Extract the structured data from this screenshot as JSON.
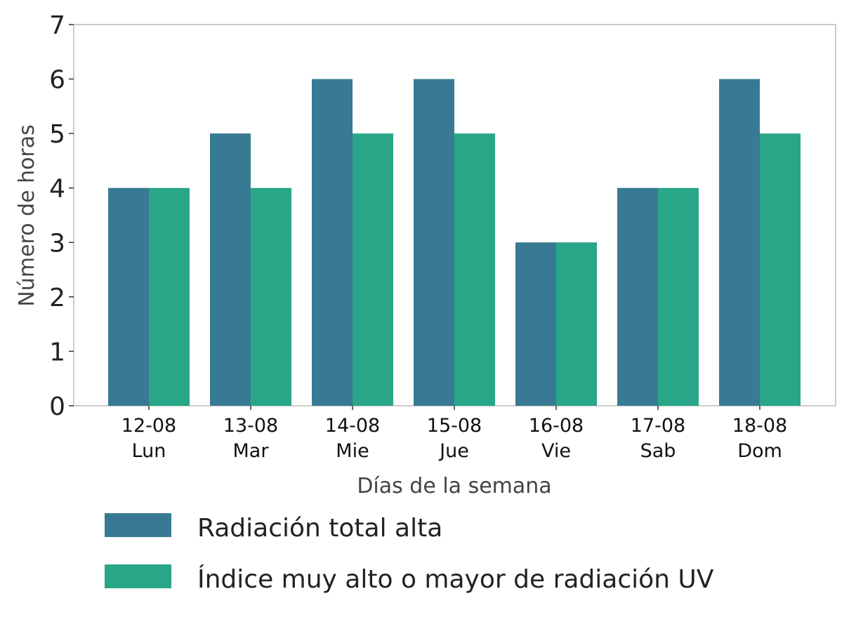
{
  "chart_data": {
    "type": "bar",
    "categories": [
      [
        "12-08",
        "Lun"
      ],
      [
        "13-08",
        "Mar"
      ],
      [
        "14-08",
        "Mie"
      ],
      [
        "15-08",
        "Jue"
      ],
      [
        "16-08",
        "Vie"
      ],
      [
        "17-08",
        "Sab"
      ],
      [
        "18-08",
        "Dom"
      ]
    ],
    "series": [
      {
        "name": "Radiación total alta",
        "values": [
          4,
          5,
          6,
          6,
          3,
          4,
          6
        ],
        "color": "#387a93"
      },
      {
        "name": "Índice muy alto o mayor de radiación UV",
        "values": [
          4,
          4,
          5,
          5,
          3,
          4,
          5
        ],
        "color": "#28a687"
      }
    ],
    "xlabel": "Días de la semana",
    "ylabel": "Número de horas",
    "ylim": [
      0,
      7
    ],
    "yticks": [
      0,
      1,
      2,
      3,
      4,
      5,
      6,
      7
    ],
    "grid": false,
    "legend_position": "bottom"
  }
}
